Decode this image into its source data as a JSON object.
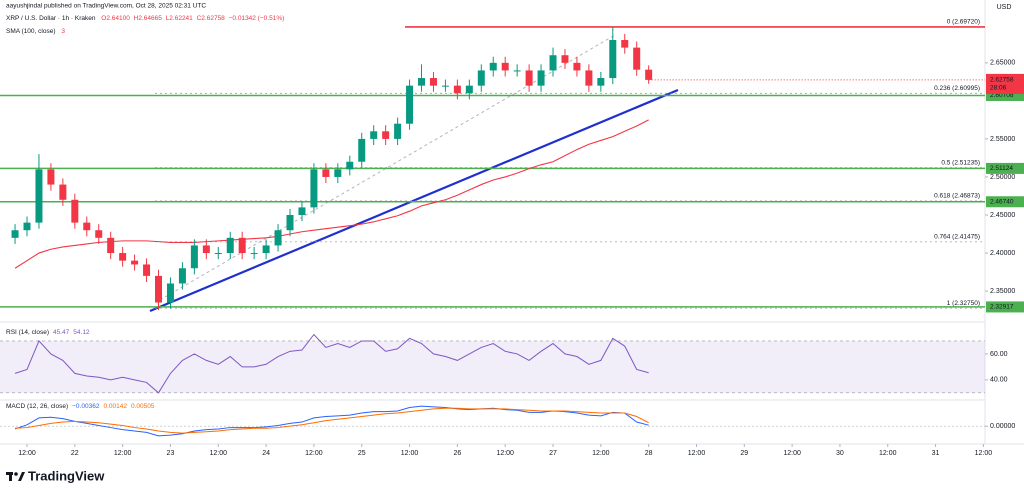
{
  "header": {
    "author": "aayushjindal published on TradingView.com, Oct 28, 2025 02:31 UTC",
    "symbol": "XRP / U.S. Dollar · 1h · Kraken",
    "ohlc": [
      "O2.64100",
      "H2.64665",
      "L2.62241",
      "C2.62758",
      "−0.01342 (−0.51%)"
    ],
    "sma_extra": "3"
  },
  "currency": "USD",
  "footer": {
    "brand": "TradingView"
  },
  "chart_data": [
    {
      "type": "candlestick",
      "title": "XRP / U.S. Dollar",
      "x": [
        "Oct 21 09:00",
        "Oct 21 12:00",
        "Oct 21 15:00",
        "Oct 21 18:00",
        "Oct 21 21:00",
        "Oct 22 00:00",
        "Oct 22 03:00",
        "Oct 22 06:00",
        "Oct 22 09:00",
        "Oct 22 12:00",
        "Oct 22 15:00",
        "Oct 22 18:00",
        "Oct 22 21:00",
        "Oct 23 00:00",
        "Oct 23 03:00",
        "Oct 23 06:00",
        "Oct 23 09:00",
        "Oct 23 12:00",
        "Oct 23 15:00",
        "Oct 23 18:00",
        "Oct 23 21:00",
        "Oct 24 00:00",
        "Oct 24 03:00",
        "Oct 24 06:00",
        "Oct 24 09:00",
        "Oct 24 12:00",
        "Oct 24 15:00",
        "Oct 24 18:00",
        "Oct 24 21:00",
        "Oct 25 00:00",
        "Oct 25 03:00",
        "Oct 25 06:00",
        "Oct 25 09:00",
        "Oct 25 12:00",
        "Oct 25 15:00",
        "Oct 25 18:00",
        "Oct 25 21:00",
        "Oct 26 00:00",
        "Oct 26 03:00",
        "Oct 26 06:00",
        "Oct 26 09:00",
        "Oct 26 12:00",
        "Oct 26 15:00",
        "Oct 26 18:00",
        "Oct 26 21:00",
        "Oct 27 00:00",
        "Oct 27 03:00",
        "Oct 27 06:00",
        "Oct 27 09:00",
        "Oct 27 12:00",
        "Oct 27 15:00",
        "Oct 27 18:00",
        "Oct 27 21:00",
        "Oct 28 00:00"
      ],
      "open": [
        2.42,
        2.43,
        2.44,
        2.51,
        2.49,
        2.47,
        2.44,
        2.43,
        2.42,
        2.4,
        2.39,
        2.385,
        2.37,
        2.335,
        2.36,
        2.38,
        2.41,
        2.4,
        2.4,
        2.42,
        2.4,
        2.4,
        2.41,
        2.43,
        2.45,
        2.46,
        2.51,
        2.5,
        2.51,
        2.52,
        2.55,
        2.56,
        2.55,
        2.57,
        2.62,
        2.63,
        2.62,
        2.62,
        2.61,
        2.62,
        2.64,
        2.65,
        2.64,
        2.64,
        2.62,
        2.64,
        2.66,
        2.65,
        2.64,
        2.62,
        2.63,
        2.68,
        2.67,
        2.641
      ],
      "high": [
        2.438,
        2.448,
        2.53,
        2.518,
        2.498,
        2.478,
        2.448,
        2.438,
        2.428,
        2.408,
        2.398,
        2.393,
        2.378,
        2.368,
        2.388,
        2.418,
        2.418,
        2.408,
        2.428,
        2.428,
        2.408,
        2.418,
        2.438,
        2.458,
        2.468,
        2.518,
        2.518,
        2.518,
        2.528,
        2.558,
        2.568,
        2.568,
        2.578,
        2.628,
        2.648,
        2.638,
        2.628,
        2.628,
        2.628,
        2.648,
        2.658,
        2.658,
        2.648,
        2.648,
        2.648,
        2.67,
        2.668,
        2.658,
        2.648,
        2.638,
        2.6972,
        2.688,
        2.678,
        2.64665
      ],
      "low": [
        2.412,
        2.422,
        2.432,
        2.482,
        2.462,
        2.432,
        2.422,
        2.412,
        2.392,
        2.382,
        2.377,
        2.362,
        2.325,
        2.327,
        2.352,
        2.372,
        2.392,
        2.392,
        2.392,
        2.392,
        2.392,
        2.392,
        2.402,
        2.422,
        2.442,
        2.452,
        2.492,
        2.492,
        2.502,
        2.512,
        2.542,
        2.542,
        2.542,
        2.562,
        2.612,
        2.612,
        2.612,
        2.602,
        2.602,
        2.612,
        2.632,
        2.632,
        2.632,
        2.612,
        2.612,
        2.632,
        2.642,
        2.632,
        2.612,
        2.612,
        2.622,
        2.662,
        2.633,
        2.62241
      ],
      "close": [
        2.43,
        2.44,
        2.51,
        2.49,
        2.47,
        2.44,
        2.43,
        2.42,
        2.4,
        2.39,
        2.385,
        2.37,
        2.335,
        2.36,
        2.38,
        2.41,
        2.4,
        2.4,
        2.42,
        2.4,
        2.4,
        2.41,
        2.43,
        2.45,
        2.46,
        2.51,
        2.5,
        2.51,
        2.52,
        2.55,
        2.56,
        2.55,
        2.57,
        2.62,
        2.63,
        2.62,
        2.62,
        2.61,
        2.62,
        2.64,
        2.65,
        2.64,
        2.64,
        2.62,
        2.64,
        2.66,
        2.65,
        2.64,
        2.62,
        2.63,
        2.68,
        2.67,
        2.641,
        2.62758
      ],
      "up_color": "#089981",
      "down_color": "#f23645",
      "series": [
        {
          "name": "SMA (100, close)",
          "color": "#f23645",
          "values": [
            2.38,
            2.39,
            2.4,
            2.405,
            2.408,
            2.41,
            2.412,
            2.414,
            2.415,
            2.416,
            2.416,
            2.416,
            2.415,
            2.414,
            2.414,
            2.414,
            2.415,
            2.416,
            2.417,
            2.418,
            2.419,
            2.42,
            2.422,
            2.425,
            2.428,
            2.43,
            2.432,
            2.434,
            2.436,
            2.438,
            2.441,
            2.445,
            2.449,
            2.455,
            2.462,
            2.466,
            2.47,
            2.476,
            2.483,
            2.49,
            2.496,
            2.5,
            2.505,
            2.511,
            2.516,
            2.52,
            2.528,
            2.536,
            2.543,
            2.548,
            2.553,
            2.56,
            2.567,
            2.575
          ]
        }
      ],
      "ylim": [
        2.312,
        2.726
      ],
      "yticks": [
        {
          "value": 2.35,
          "label": "2.35000"
        },
        {
          "value": 2.4,
          "label": "2.40000"
        },
        {
          "value": 2.45,
          "label": "2.45000"
        },
        {
          "value": 2.5,
          "label": "2.50000"
        },
        {
          "value": 2.55,
          "label": "2.55000"
        },
        {
          "value": 2.65,
          "label": "2.65000"
        }
      ],
      "xticks": [
        {
          "value": "Oct 21 12:00",
          "label": "12:00"
        },
        {
          "value": "Oct 22 00:00",
          "label": "22"
        },
        {
          "value": "Oct 22 12:00",
          "label": "12:00"
        },
        {
          "value": "Oct 23 00:00",
          "label": "23"
        },
        {
          "value": "Oct 23 12:00",
          "label": "12:00"
        },
        {
          "value": "Oct 24 00:00",
          "label": "24"
        },
        {
          "value": "Oct 24 12:00",
          "label": "12:00"
        },
        {
          "value": "Oct 25 00:00",
          "label": "25"
        },
        {
          "value": "Oct 25 12:00",
          "label": "12:00"
        },
        {
          "value": "Oct 26 00:00",
          "label": "26"
        },
        {
          "value": "Oct 26 12:00",
          "label": "12:00"
        },
        {
          "value": "Oct 27 00:00",
          "label": "27"
        },
        {
          "value": "Oct 27 12:00",
          "label": "12:00"
        },
        {
          "value": "Oct 28 00:00",
          "label": "28"
        },
        {
          "value": "Oct 28 12:00",
          "label": "12:00"
        },
        {
          "value": "Oct 29 00:00",
          "label": "29"
        },
        {
          "value": "Oct 29 12:00",
          "label": "12:00"
        },
        {
          "value": "Oct 30 00:00",
          "label": "30"
        },
        {
          "value": "Oct 30 12:00",
          "label": "12:00"
        },
        {
          "value": "Oct 31 00:00",
          "label": "31"
        },
        {
          "value": "Oct 31 12:00",
          "label": "12:00"
        }
      ],
      "price_lines": [
        {
          "value": 2.60708,
          "label": "2.60708"
        },
        {
          "value": 2.51124,
          "label": "2.51124"
        },
        {
          "value": 2.4674,
          "label": "2.46740"
        },
        {
          "value": 2.32917,
          "label": "2.32917"
        }
      ],
      "price_line_color": "#4caf50",
      "current_price": {
        "value": 2.62758,
        "label": "2.62758",
        "countdown": "28:06",
        "color": "#f23645"
      },
      "fib_levels": [
        {
          "value": 2.6972,
          "label": "0 (2.69720)",
          "color": "#f23645"
        },
        {
          "value": 2.60995,
          "label": "0.236 (2.60995)",
          "color": "#4caf50"
        },
        {
          "value": 2.51235,
          "label": "0.5 (2.51235)",
          "color": "#9e9e9e"
        },
        {
          "value": 2.46873,
          "label": "0.618 (2.46873)",
          "color": "#9e9e9e"
        },
        {
          "value": 2.41475,
          "label": "0.764 (2.41475)",
          "color": "#9e9e9e"
        },
        {
          "value": 2.3275,
          "label": "1 (2.32750)",
          "color": "#9e9e9e"
        }
      ]
    },
    {
      "type": "line",
      "title": "RSI (14, close)",
      "legend_values": [
        "45.47",
        "54.12"
      ],
      "series": [
        {
          "color": "#7e57c2",
          "values": [
            45,
            48,
            70,
            60,
            55,
            45,
            43,
            42,
            40,
            42,
            40,
            38,
            30,
            45,
            55,
            60,
            55,
            52,
            58,
            50,
            50,
            52,
            58,
            62,
            63,
            75,
            65,
            68,
            65,
            70,
            70,
            62,
            64,
            72,
            68,
            60,
            58,
            55,
            60,
            65,
            68,
            62,
            60,
            55,
            62,
            68,
            60,
            58,
            52,
            55,
            72,
            66,
            48,
            45.47
          ]
        }
      ],
      "band": [
        30,
        70
      ],
      "band_color": "#7e57c2",
      "ylim": [
        26,
        80
      ],
      "yticks": [
        {
          "value": 40,
          "label": "40.00"
        },
        {
          "value": 60,
          "label": "60.00"
        }
      ]
    },
    {
      "type": "line",
      "title": "MACD (12, 26, close)",
      "legend_values": [
        "−0.00362",
        "0.00142",
        "0.00505"
      ],
      "series": [
        {
          "color": "#2962ff",
          "values": [
            -0.004,
            0.002,
            0.012,
            0.013,
            0.011,
            0.007,
            0.004,
            0.001,
            -0.002,
            -0.005,
            -0.007,
            -0.009,
            -0.014,
            -0.013,
            -0.011,
            -0.007,
            -0.005,
            -0.004,
            -0.002,
            -0.002,
            -0.002,
            -0.001,
            0.001,
            0.004,
            0.006,
            0.012,
            0.014,
            0.015,
            0.016,
            0.019,
            0.021,
            0.021,
            0.022,
            0.027,
            0.029,
            0.028,
            0.027,
            0.025,
            0.024,
            0.025,
            0.026,
            0.024,
            0.023,
            0.02,
            0.02,
            0.022,
            0.021,
            0.019,
            0.016,
            0.015,
            0.02,
            0.019,
            0.006,
            0.00142
          ]
        },
        {
          "color": "#ff6d00",
          "values": [
            -0.003,
            -0.002,
            0.001,
            0.004,
            0.006,
            0.007,
            0.006,
            0.005,
            0.003,
            0.001,
            -0.002,
            -0.004,
            -0.007,
            -0.009,
            -0.01,
            -0.009,
            -0.008,
            -0.007,
            -0.005,
            -0.004,
            -0.003,
            -0.003,
            -0.002,
            0,
            0.002,
            0.005,
            0.008,
            0.01,
            0.012,
            0.014,
            0.016,
            0.018,
            0.019,
            0.021,
            0.023,
            0.025,
            0.026,
            0.026,
            0.025,
            0.025,
            0.025,
            0.025,
            0.024,
            0.023,
            0.022,
            0.022,
            0.022,
            0.021,
            0.02,
            0.019,
            0.019,
            0.019,
            0.014,
            0.00505
          ]
        }
      ],
      "ylim": [
        -0.02,
        0.035
      ],
      "yticks": [
        {
          "value": 0,
          "label": "0.00000"
        }
      ]
    }
  ]
}
